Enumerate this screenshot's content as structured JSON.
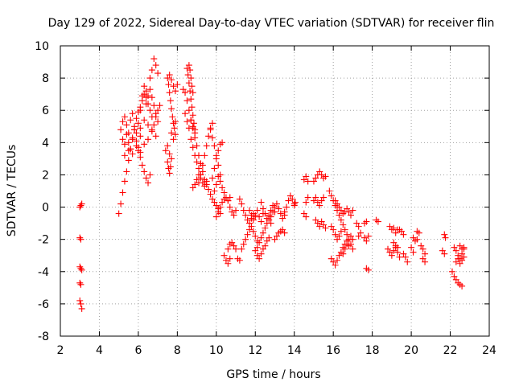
{
  "chart_data": {
    "type": "scatter",
    "title": "Day 129 of 2022, Sidereal Day-to-day VTEC variation (SDTVAR) for receiver flin",
    "xlabel": "GPS time / hours",
    "ylabel": "SDTVAR / TECUs",
    "xlim": [
      2,
      24
    ],
    "ylim": [
      -8,
      10
    ],
    "xticks": [
      2,
      4,
      6,
      8,
      10,
      12,
      14,
      16,
      18,
      20,
      22,
      24
    ],
    "yticks": [
      -8,
      -6,
      -4,
      -2,
      0,
      2,
      4,
      6,
      8,
      10
    ],
    "xtick_labels": [
      "2",
      "4",
      "6",
      "8",
      "10",
      "12",
      "14",
      "16",
      "18",
      "20",
      "22",
      "24"
    ],
    "ytick_labels": [
      "-8",
      "-6",
      "-4",
      "-2",
      "0",
      "2",
      "4",
      "6",
      "8",
      "10"
    ],
    "grid": true,
    "marker": "+",
    "color": "#ff0000",
    "segments": [
      {
        "x": [
          3.0,
          3.05,
          3.1
        ],
        "y": [
          0.0,
          0.1,
          0.2
        ]
      },
      {
        "x": [
          3.0,
          3.05
        ],
        "y": [
          -1.9,
          -2.0
        ]
      },
      {
        "x": [
          3.0,
          3.05,
          3.1
        ],
        "y": [
          -3.7,
          -3.8,
          -3.9
        ]
      },
      {
        "x": [
          3.0,
          3.05
        ],
        "y": [
          -4.7,
          -4.8
        ]
      },
      {
        "x": [
          3.0,
          3.05,
          3.1
        ],
        "y": [
          -5.8,
          -6.0,
          -6.3
        ]
      },
      {
        "x": [
          5.0,
          5.1,
          5.2,
          5.3,
          5.4,
          5.5,
          5.6,
          5.7,
          5.8
        ],
        "y": [
          -0.4,
          0.2,
          0.9,
          1.6,
          2.2,
          2.9,
          3.6,
          4.2,
          4.8
        ]
      },
      {
        "x": [
          5.1,
          5.2,
          5.3,
          5.4,
          5.5,
          5.6,
          5.7
        ],
        "y": [
          4.8,
          5.3,
          5.6,
          5.1,
          4.6,
          5.4,
          5.8
        ]
      },
      {
        "x": [
          5.2,
          5.3,
          5.4,
          5.5,
          5.6,
          5.7,
          5.8,
          5.9,
          6.0,
          6.1
        ],
        "y": [
          4.2,
          3.9,
          4.5,
          4.0,
          3.6,
          4.3,
          4.8,
          4.1,
          3.7,
          4.4
        ]
      },
      {
        "x": [
          5.3,
          5.5,
          5.7,
          5.9,
          6.1,
          6.3,
          6.5
        ],
        "y": [
          3.2,
          3.5,
          3.3,
          3.8,
          3.4,
          3.9,
          4.2
        ]
      },
      {
        "x": [
          5.8,
          5.9,
          6.0,
          6.1,
          6.2,
          6.3,
          6.4,
          6.5,
          6.6,
          6.7
        ],
        "y": [
          5.0,
          5.5,
          5.9,
          6.2,
          6.6,
          7.0,
          6.8,
          6.4,
          6.0,
          5.6
        ]
      },
      {
        "x": [
          6.0,
          6.1,
          6.2,
          6.3,
          6.4
        ],
        "y": [
          5.2,
          6.0,
          6.9,
          7.5,
          7.2
        ]
      },
      {
        "x": [
          5.9,
          6.1,
          6.3,
          6.5,
          6.7,
          6.9
        ],
        "y": [
          4.6,
          4.9,
          5.4,
          5.1,
          4.7,
          4.4
        ]
      },
      {
        "x": [
          6.0,
          6.1,
          6.2,
          6.3,
          6.4,
          6.5,
          6.6
        ],
        "y": [
          3.5,
          3.1,
          2.6,
          2.2,
          1.8,
          1.5,
          2.0
        ]
      },
      {
        "x": [
          6.6,
          6.7,
          6.8,
          6.9,
          7.0
        ],
        "y": [
          8.0,
          8.5,
          9.2,
          8.8,
          8.3
        ]
      },
      {
        "x": [
          6.4,
          6.5,
          6.6,
          6.7,
          6.8,
          6.9,
          7.0
        ],
        "y": [
          6.4,
          6.9,
          7.3,
          6.8,
          6.3,
          5.8,
          5.3
        ]
      },
      {
        "x": [
          6.7,
          6.8,
          6.9,
          7.0,
          7.1
        ],
        "y": [
          4.8,
          5.1,
          5.6,
          6.0,
          6.3
        ]
      },
      {
        "x": [
          7.5,
          7.55,
          7.6,
          7.65,
          7.7,
          7.75,
          7.8,
          7.85,
          7.9
        ],
        "y": [
          8.0,
          7.6,
          7.1,
          6.6,
          6.1,
          5.6,
          5.2,
          4.9,
          5.3
        ]
      },
      {
        "x": [
          7.6,
          7.7,
          7.8,
          7.9,
          8.0
        ],
        "y": [
          8.2,
          7.9,
          7.5,
          7.2,
          7.6
        ]
      },
      {
        "x": [
          7.5,
          7.55,
          7.6,
          7.65
        ],
        "y": [
          2.8,
          2.4,
          2.1,
          2.5
        ]
      },
      {
        "x": [
          7.4,
          7.5,
          7.6,
          7.7
        ],
        "y": [
          3.5,
          3.8,
          3.3,
          3.0
        ]
      },
      {
        "x": [
          7.7,
          7.8,
          7.9
        ],
        "y": [
          4.6,
          4.2,
          4.5
        ]
      },
      {
        "x": [
          8.3,
          8.4,
          8.5,
          8.6,
          8.7,
          8.8,
          8.9,
          9.0,
          9.1,
          9.2,
          9.3,
          9.4,
          9.5,
          9.6,
          9.7,
          9.8,
          9.9,
          10.0,
          10.1,
          10.2
        ],
        "y": [
          7.3,
          7.1,
          6.6,
          6.0,
          5.4,
          4.9,
          4.3,
          3.8,
          3.2,
          2.7,
          2.2,
          1.7,
          1.4,
          1.1,
          0.8,
          0.5,
          0.3,
          0.1,
          -0.1,
          -0.4
        ]
      },
      {
        "x": [
          8.5,
          8.55,
          8.6,
          8.65,
          8.7,
          8.75,
          8.8,
          8.85,
          8.9
        ],
        "y": [
          8.6,
          8.2,
          7.7,
          7.2,
          6.7,
          6.2,
          5.7,
          5.2,
          4.8
        ]
      },
      {
        "x": [
          8.6,
          8.65,
          8.7,
          8.75,
          8.8
        ],
        "y": [
          8.8,
          8.5,
          8.0,
          7.5,
          7.1
        ]
      },
      {
        "x": [
          8.4,
          8.5,
          8.6,
          8.7,
          8.8,
          8.9
        ],
        "y": [
          5.8,
          5.3,
          4.9,
          5.4,
          5.0,
          4.6
        ]
      },
      {
        "x": [
          8.7,
          8.8,
          8.9,
          9.0,
          9.1,
          9.2
        ],
        "y": [
          4.2,
          3.7,
          3.2,
          2.8,
          2.4,
          2.0
        ]
      },
      {
        "x": [
          8.8,
          8.9,
          9.0,
          9.1,
          9.2,
          9.3,
          9.4,
          9.5
        ],
        "y": [
          1.2,
          1.4,
          1.7,
          2.0,
          1.8,
          1.5,
          1.3,
          1.6
        ]
      },
      {
        "x": [
          9.1,
          9.2,
          9.3,
          9.4,
          9.5,
          9.6,
          9.7,
          9.8
        ],
        "y": [
          1.5,
          2.0,
          2.6,
          3.2,
          3.8,
          4.4,
          4.9,
          5.2
        ]
      },
      {
        "x": [
          9.7,
          9.8,
          9.9,
          10.0,
          10.1,
          10.2
        ],
        "y": [
          4.8,
          4.3,
          3.8,
          3.2,
          2.6,
          2.0
        ]
      },
      {
        "x": [
          9.8,
          9.9,
          10.0,
          10.1,
          10.2,
          10.3
        ],
        "y": [
          1.8,
          2.4,
          3.0,
          3.5,
          3.9,
          4.0
        ]
      },
      {
        "x": [
          9.9,
          10.0,
          10.1,
          10.2,
          10.3,
          10.4,
          10.5,
          10.6,
          10.7
        ],
        "y": [
          1.0,
          1.4,
          1.9,
          1.6,
          1.2,
          0.9,
          0.6,
          0.4,
          0.6
        ]
      },
      {
        "x": [
          10.0,
          10.1,
          10.2,
          10.3,
          10.4
        ],
        "y": [
          -0.6,
          -0.3,
          0.0,
          0.3,
          0.5
        ]
      },
      {
        "x": [
          10.6,
          10.7,
          10.8,
          10.9,
          11.0
        ],
        "y": [
          0.4,
          0.0,
          -0.3,
          -0.5,
          -0.2
        ]
      },
      {
        "x": [
          10.4,
          10.5,
          10.6,
          10.7
        ],
        "y": [
          -3.0,
          -3.3,
          -3.5,
          -3.2
        ]
      },
      {
        "x": [
          10.6,
          10.7,
          10.8,
          10.9,
          11.0
        ],
        "y": [
          -2.6,
          -2.3,
          -2.2,
          -2.4,
          -2.6
        ]
      },
      {
        "x": [
          11.1,
          11.2
        ],
        "y": [
          -3.2,
          -3.3
        ]
      },
      {
        "x": [
          11.2,
          11.3,
          11.4,
          11.5,
          11.6,
          11.7,
          11.8,
          11.9,
          12.0
        ],
        "y": [
          0.5,
          0.2,
          -0.2,
          -0.5,
          -0.8,
          -1.0,
          -0.7,
          -0.4,
          -0.6
        ]
      },
      {
        "x": [
          11.3,
          11.4,
          11.5,
          11.6,
          11.7,
          11.8,
          11.9,
          12.0,
          12.1
        ],
        "y": [
          -2.6,
          -2.3,
          -2.0,
          -1.7,
          -1.4,
          -1.2,
          -1.5,
          -1.8,
          -2.1
        ]
      },
      {
        "x": [
          11.7,
          11.8,
          11.9,
          12.0,
          12.1,
          12.2,
          12.3,
          12.4
        ],
        "y": [
          -0.2,
          -0.5,
          -0.8,
          -0.5,
          -0.2,
          -0.6,
          -0.9,
          -0.4
        ]
      },
      {
        "x": [
          12.0,
          12.1,
          12.2,
          12.3,
          12.4,
          12.5,
          12.6,
          12.7,
          12.8
        ],
        "y": [
          -2.7,
          -2.5,
          -2.2,
          -1.9,
          -1.6,
          -1.3,
          -1.0,
          -0.8,
          -1.0
        ]
      },
      {
        "x": [
          12.1,
          12.2,
          12.3,
          12.4,
          12.5,
          12.6,
          12.7
        ],
        "y": [
          -3.0,
          -3.2,
          -2.9,
          -2.6,
          -2.4,
          -2.1,
          -1.9
        ]
      },
      {
        "x": [
          12.3,
          12.4,
          12.5,
          12.6,
          12.7,
          12.8,
          12.9,
          13.0
        ],
        "y": [
          0.3,
          -0.1,
          -0.4,
          -0.7,
          -0.5,
          -0.2,
          0.1,
          -0.3
        ]
      },
      {
        "x": [
          12.8,
          12.9,
          13.0,
          13.1,
          13.2,
          13.3,
          13.4,
          13.5
        ],
        "y": [
          -0.6,
          -0.3,
          0.0,
          0.2,
          -0.1,
          -0.4,
          -0.7,
          -0.5
        ]
      },
      {
        "x": [
          13.0,
          13.1,
          13.2,
          13.3,
          13.4,
          13.5
        ],
        "y": [
          -2.0,
          -1.8,
          -1.6,
          -1.5,
          -1.4,
          -1.6
        ]
      },
      {
        "x": [
          13.5,
          13.6,
          13.7,
          13.8,
          13.9,
          14.0
        ],
        "y": [
          -0.3,
          0.0,
          0.4,
          0.7,
          0.5,
          0.2
        ]
      },
      {
        "x": [
          14.0,
          14.05
        ],
        "y": [
          0.1,
          0.3
        ]
      },
      {
        "x": [
          14.5,
          14.6,
          14.7
        ],
        "y": [
          1.7,
          1.9,
          1.6
        ]
      },
      {
        "x": [
          14.6,
          14.7
        ],
        "y": [
          0.3,
          0.6
        ]
      },
      {
        "x": [
          14.5,
          14.6
        ],
        "y": [
          -0.4,
          -0.6
        ]
      },
      {
        "x": [
          15.0,
          15.1,
          15.2,
          15.3,
          15.4,
          15.5,
          15.6
        ],
        "y": [
          1.6,
          1.8,
          2.0,
          2.2,
          2.0,
          1.8,
          1.9
        ]
      },
      {
        "x": [
          15.0,
          15.1,
          15.2,
          15.3,
          15.4,
          15.5
        ],
        "y": [
          0.4,
          0.6,
          0.3,
          0.1,
          0.4,
          0.6
        ]
      },
      {
        "x": [
          15.1,
          15.2,
          15.3,
          15.4,
          15.5,
          15.6
        ],
        "y": [
          -0.8,
          -1.0,
          -1.2,
          -0.9,
          -1.1,
          -1.3
        ]
      },
      {
        "x": [
          15.8,
          15.9,
          16.0,
          16.1,
          16.2,
          16.3,
          16.4,
          16.5,
          16.6,
          16.7,
          16.8,
          16.9,
          17.0
        ],
        "y": [
          1.0,
          0.7,
          0.4,
          0.1,
          -0.2,
          -0.5,
          -0.8,
          -1.1,
          -1.4,
          -1.7,
          -2.0,
          -2.3,
          -2.6
        ]
      },
      {
        "x": [
          16.1,
          16.2,
          16.3,
          16.4,
          16.5,
          16.6,
          16.7,
          16.8,
          16.9,
          17.0
        ],
        "y": [
          0.4,
          0.2,
          0.0,
          -0.2,
          -0.4,
          -0.3,
          -0.1,
          -0.3,
          -0.5,
          -0.2
        ]
      },
      {
        "x": [
          15.9,
          16.0,
          16.1,
          16.2,
          16.3,
          16.4
        ],
        "y": [
          -1.2,
          -1.4,
          -1.7,
          -2.0,
          -1.8,
          -1.5
        ]
      },
      {
        "x": [
          15.9,
          16.0,
          16.1,
          16.2,
          16.3,
          16.4,
          16.5,
          16.6,
          16.7,
          16.8
        ],
        "y": [
          -3.2,
          -3.4,
          -3.6,
          -3.3,
          -3.0,
          -2.8,
          -2.5,
          -2.3,
          -2.1,
          -2.4
        ]
      },
      {
        "x": [
          16.5,
          16.6,
          16.7,
          16.8,
          16.9,
          17.0
        ],
        "y": [
          -2.9,
          -2.6,
          -2.3,
          -2.0,
          -1.8,
          -2.0
        ]
      },
      {
        "x": [
          17.2,
          17.3
        ],
        "y": [
          -1.0,
          -1.2
        ]
      },
      {
        "x": [
          17.3,
          17.4
        ],
        "y": [
          -1.8,
          -1.6
        ]
      },
      {
        "x": [
          17.6,
          17.7
        ],
        "y": [
          -1.0,
          -0.9
        ]
      },
      {
        "x": [
          17.6,
          17.7,
          17.8
        ],
        "y": [
          -1.9,
          -2.1,
          -1.8
        ]
      },
      {
        "x": [
          17.7,
          17.8
        ],
        "y": [
          -3.8,
          -3.9
        ]
      },
      {
        "x": [
          18.2,
          18.3
        ],
        "y": [
          -0.8,
          -0.9
        ]
      },
      {
        "x": [
          18.9,
          19.0,
          19.1,
          19.2,
          19.3
        ],
        "y": [
          -1.2,
          -1.4,
          -1.3,
          -1.6,
          -1.4
        ]
      },
      {
        "x": [
          18.8,
          18.9,
          19.0,
          19.1,
          19.2,
          19.3,
          19.4
        ],
        "y": [
          -2.6,
          -2.8,
          -3.0,
          -2.7,
          -2.5,
          -2.8,
          -3.1
        ]
      },
      {
        "x": [
          19.1,
          19.2,
          19.3
        ],
        "y": [
          -2.2,
          -2.4,
          -2.5
        ]
      },
      {
        "x": [
          19.4,
          19.5,
          19.6
        ],
        "y": [
          -1.4,
          -1.5,
          -1.7
        ]
      },
      {
        "x": [
          19.6,
          19.7,
          19.8
        ],
        "y": [
          -2.9,
          -3.1,
          -3.4
        ]
      },
      {
        "x": [
          20.0,
          20.1
        ],
        "y": [
          -2.5,
          -2.8
        ]
      },
      {
        "x": [
          20.1,
          20.2,
          20.3
        ],
        "y": [
          -1.9,
          -2.1,
          -2.0
        ]
      },
      {
        "x": [
          20.3,
          20.4
        ],
        "y": [
          -1.5,
          -1.6
        ]
      },
      {
        "x": [
          20.5,
          20.6,
          20.7
        ],
        "y": [
          -2.4,
          -2.6,
          -2.9
        ]
      },
      {
        "x": [
          20.6,
          20.7
        ],
        "y": [
          -3.2,
          -3.4
        ]
      },
      {
        "x": [
          21.6,
          21.7
        ],
        "y": [
          -2.7,
          -2.9
        ]
      },
      {
        "x": [
          21.7,
          21.75
        ],
        "y": [
          -1.7,
          -1.9
        ]
      },
      {
        "x": [
          22.2,
          22.3,
          22.4,
          22.5,
          22.6,
          22.7
        ],
        "y": [
          -2.5,
          -2.7,
          -3.0,
          -3.2,
          -2.9,
          -2.6
        ]
      },
      {
        "x": [
          22.3,
          22.4,
          22.5,
          22.6,
          22.7
        ],
        "y": [
          -3.4,
          -3.2,
          -3.5,
          -3.3,
          -3.1
        ]
      },
      {
        "x": [
          22.1,
          22.2,
          22.3,
          22.4,
          22.5,
          22.6
        ],
        "y": [
          -4.0,
          -4.3,
          -4.5,
          -4.7,
          -4.8,
          -4.9
        ]
      },
      {
        "x": [
          22.5,
          22.6,
          22.7
        ],
        "y": [
          -2.4,
          -2.6,
          -2.5
        ]
      }
    ]
  }
}
